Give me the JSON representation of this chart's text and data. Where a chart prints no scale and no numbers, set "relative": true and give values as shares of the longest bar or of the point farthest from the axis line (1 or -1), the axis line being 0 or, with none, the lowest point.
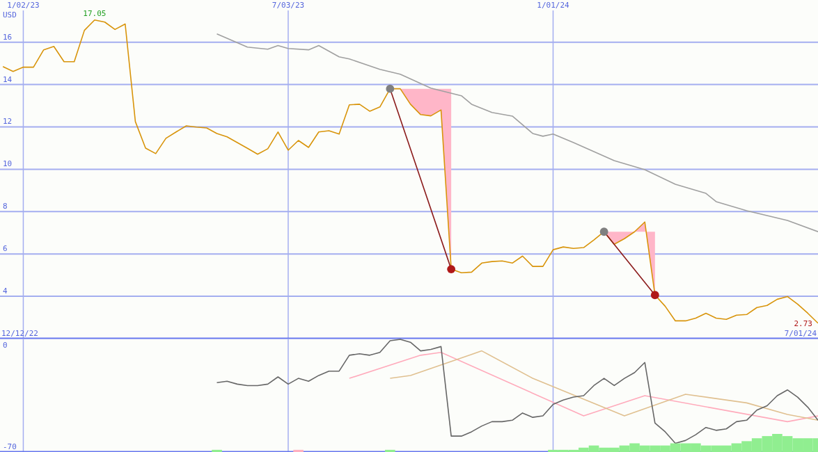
{
  "chart_data": [
    {
      "type": "line",
      "ylabel": "USD",
      "x": [
        "2022-12-19",
        "2022-12-26",
        "2023-01-02",
        "2023-01-09",
        "2023-01-16",
        "2023-01-23",
        "2023-01-30",
        "2023-02-06",
        "2023-02-13",
        "2023-02-20",
        "2023-02-27",
        "2023-03-06",
        "2023-03-13",
        "2023-03-20",
        "2023-03-27",
        "2023-04-03",
        "2023-04-10",
        "2023-04-17",
        "2023-04-24",
        "2023-05-01",
        "2023-05-08",
        "2023-05-15",
        "2023-05-22",
        "2023-05-29",
        "2023-06-05",
        "2023-06-12",
        "2023-06-19",
        "2023-06-26",
        "2023-07-03",
        "2023-07-10",
        "2023-07-17",
        "2023-07-24",
        "2023-07-31",
        "2023-08-07",
        "2023-08-14",
        "2023-08-21",
        "2023-08-28",
        "2023-09-04",
        "2023-09-11",
        "2023-09-18",
        "2023-09-25",
        "2023-10-02",
        "2023-10-09",
        "2023-10-16",
        "2023-10-23",
        "2023-10-30",
        "2023-11-06",
        "2023-11-13",
        "2023-11-20",
        "2023-11-27",
        "2023-12-04",
        "2023-12-11",
        "2023-12-18",
        "2023-12-25",
        "2024-01-01",
        "2024-01-08",
        "2024-01-15",
        "2024-01-22",
        "2024-01-29",
        "2024-02-05",
        "2024-02-12",
        "2024-02-19",
        "2024-02-26",
        "2024-03-04",
        "2024-03-11",
        "2024-03-18",
        "2024-03-25",
        "2024-04-01",
        "2024-04-08",
        "2024-04-15",
        "2024-04-22",
        "2024-04-29",
        "2024-05-06",
        "2024-05-13",
        "2024-05-20",
        "2024-05-27",
        "2024-06-03",
        "2024-06-10",
        "2024-06-17",
        "2024-06-24",
        "2024-07-01"
      ],
      "series": [
        {
          "color": "#d8940a",
          "values": [
            14.85,
            14.62,
            14.82,
            14.82,
            15.64,
            15.8,
            15.08,
            15.08,
            16.56,
            17.05,
            16.95,
            16.6,
            16.86,
            12.25,
            11.0,
            10.74,
            11.46,
            11.76,
            12.05,
            11.99,
            11.95,
            11.69,
            11.53,
            11.26,
            10.99,
            10.71,
            10.97,
            11.76,
            10.9,
            11.36,
            11.03,
            11.76,
            11.82,
            11.66,
            13.04,
            13.07,
            12.74,
            12.94,
            13.8,
            13.8,
            13.07,
            12.58,
            12.52,
            12.8,
            5.28,
            5.11,
            5.14,
            5.57,
            5.64,
            5.67,
            5.57,
            5.9,
            5.41,
            5.41,
            6.2,
            6.33,
            6.26,
            6.3,
            6.66,
            7.05,
            6.46,
            6.72,
            7.05,
            7.51,
            4.06,
            3.53,
            2.84,
            2.84,
            2.97,
            3.2,
            2.97,
            2.91,
            3.11,
            3.14,
            3.47,
            3.57,
            3.86,
            3.99,
            3.63,
            3.2,
            2.73
          ],
          "lower": [
            null,
            null,
            null,
            null,
            null,
            null,
            null,
            null,
            null,
            null,
            null,
            null,
            null,
            null,
            null,
            null,
            null,
            null,
            null,
            null,
            null,
            null,
            null,
            null,
            null,
            null,
            null,
            null,
            null,
            null,
            null,
            null,
            null,
            null,
            null,
            null,
            null,
            null,
            13.8,
            13.8,
            13.07,
            12.58,
            12.52,
            12.8,
            5.28,
            null,
            null,
            null,
            null,
            null,
            null,
            null,
            null,
            null,
            null,
            null,
            null,
            null,
            null,
            7.05,
            6.46,
            6.72,
            7.05,
            7.51,
            4.06,
            null,
            null,
            null,
            null,
            null,
            null,
            null,
            null,
            null,
            null,
            null,
            null,
            null,
            null,
            null,
            null
          ],
          "upper": [
            null,
            null,
            null,
            null,
            null,
            null,
            null,
            null,
            null,
            null,
            null,
            null,
            null,
            null,
            null,
            null,
            null,
            null,
            null,
            null,
            null,
            null,
            null,
            null,
            null,
            null,
            null,
            null,
            null,
            null,
            null,
            null,
            null,
            null,
            null,
            null,
            null,
            null,
            13.8,
            13.8,
            13.8,
            13.8,
            13.8,
            13.8,
            13.8,
            null,
            null,
            null,
            null,
            null,
            null,
            null,
            null,
            null,
            null,
            null,
            null,
            null,
            null,
            7.05,
            7.05,
            7.05,
            7.05,
            7.05,
            7.05,
            null,
            null,
            null,
            null,
            null,
            null,
            null,
            null,
            null,
            null,
            null,
            null,
            null,
            null,
            null,
            null
          ]
        },
        {
          "color": "#a0a0a0",
          "x": [
            "2023-05-15",
            "2023-06-05",
            "2023-06-19",
            "2023-06-26",
            "2023-07-03",
            "2023-07-17",
            "2023-07-24",
            "2023-08-07",
            "2023-08-14",
            "2023-09-04",
            "2023-09-18",
            "2023-10-09",
            "2023-10-30",
            "2023-11-06",
            "2023-11-20",
            "2023-12-04",
            "2023-12-18",
            "2023-12-25",
            "2024-01-01",
            "2024-01-15",
            "2024-02-12",
            "2024-03-04",
            "2024-03-25",
            "2024-04-15",
            "2024-04-22",
            "2024-05-13",
            "2024-06-10",
            "2024-07-01"
          ],
          "values": [
            16.39,
            15.77,
            15.67,
            15.84,
            15.7,
            15.64,
            15.84,
            15.31,
            15.21,
            14.72,
            14.49,
            13.83,
            13.47,
            13.07,
            12.68,
            12.51,
            11.69,
            11.56,
            11.66,
            11.26,
            10.41,
            9.98,
            9.29,
            8.86,
            8.47,
            8.04,
            7.58,
            7.05
          ]
        },
        {
          "color": "#8b1a1a",
          "marker": "circle",
          "colors": [
            "#808080",
            "#b01818"
          ],
          "x": [
            "2023-09-11",
            "2023-10-23"
          ],
          "values": [
            13.8,
            5.28
          ]
        },
        {
          "color": "#8b1a1a",
          "marker": "circle",
          "colors": [
            "#808080",
            "#b01818"
          ],
          "x": [
            "2024-02-05",
            "2024-03-11"
          ],
          "values": [
            7.05,
            4.06
          ]
        }
      ],
      "xlim": [
        "2022-12-17",
        "2024-07-01"
      ],
      "xticks": [
        {
          "value": "2023-01-02",
          "label": "1/02/23"
        },
        {
          "value": "2023-07-03",
          "label": "7/03/23"
        },
        {
          "value": "2024-01-01",
          "label": "1/01/24"
        }
      ],
      "ylim": [
        2,
        17.5
      ],
      "yticks": [
        4,
        6,
        8,
        10,
        12,
        14,
        16
      ],
      "grid": true,
      "annotations": [
        {
          "text": "17.05",
          "x": "2023-02-20",
          "y": 17.05
        },
        {
          "text": "2.73",
          "x": "2024-07-01",
          "y": 2.73
        },
        "12/12/22",
        "7/01/24"
      ]
    },
    {
      "type": "line",
      "x": [
        "2023-05-15",
        "2023-05-22",
        "2023-05-29",
        "2023-06-05",
        "2023-06-12",
        "2023-06-19",
        "2023-06-26",
        "2023-07-03",
        "2023-07-10",
        "2023-07-17",
        "2023-07-24",
        "2023-07-31",
        "2023-08-07",
        "2023-08-14",
        "2023-08-21",
        "2023-08-28",
        "2023-09-04",
        "2023-09-11",
        "2023-09-18",
        "2023-09-25",
        "2023-10-02",
        "2023-10-09",
        "2023-10-16",
        "2023-10-23",
        "2023-10-30",
        "2023-11-06",
        "2023-11-13",
        "2023-11-20",
        "2023-11-27",
        "2023-12-04",
        "2023-12-11",
        "2023-12-18",
        "2023-12-25",
        "2024-01-01",
        "2024-01-08",
        "2024-01-15",
        "2024-01-22",
        "2024-01-29",
        "2024-02-05",
        "2024-02-12",
        "2024-02-19",
        "2024-02-26",
        "2024-03-04",
        "2024-03-11",
        "2024-03-18",
        "2024-03-25",
        "2024-04-01",
        "2024-04-08",
        "2024-04-15",
        "2024-04-22",
        "2024-04-29",
        "2024-05-06",
        "2024-05-13",
        "2024-05-20",
        "2024-05-27",
        "2024-06-03",
        "2024-06-10",
        "2024-06-17",
        "2024-06-24",
        "2024-07-01"
      ],
      "series": [
        {
          "color": "#ffaabb",
          "x": [
            "2023-08-14",
            "2023-10-02",
            "2023-10-16",
            "2024-01-22",
            "2024-03-04",
            "2024-06-10",
            "2024-07-01"
          ],
          "values": [
            -23,
            -7,
            -5,
            -49,
            -35,
            -53,
            -49
          ]
        },
        {
          "color": "#e0c090",
          "x": [
            "2023-09-11",
            "2023-09-25",
            "2023-11-13",
            "2023-12-18",
            "2024-02-19",
            "2024-04-01",
            "2024-05-13",
            "2024-06-10",
            "2024-07-01"
          ],
          "values": [
            -23,
            -21,
            -4,
            -23,
            -49,
            -34,
            -40,
            -48,
            -52
          ]
        },
        {
          "color": "#666666",
          "values": [
            -26,
            -25,
            -27,
            -28,
            -28,
            -27,
            -22,
            -27,
            -23,
            -25,
            -21,
            -18,
            -18,
            -7,
            -6,
            -7,
            -5,
            3,
            4,
            2,
            -4,
            -3,
            -1,
            -63,
            -63,
            -60,
            -56,
            -53,
            -53,
            -52,
            -47,
            -50,
            -49,
            -41,
            -38,
            -36,
            -35,
            -28,
            -23,
            -28,
            -23,
            -19,
            -12,
            -54,
            -60,
            -68,
            -66,
            -62,
            -57,
            -59,
            -58,
            -53,
            -52,
            -45,
            -42,
            -35,
            -31,
            -36,
            -43,
            -52
          ]
        }
      ],
      "xlim": [
        "2022-12-17",
        "2024-07-01"
      ],
      "xticks": [
        "2023-01-02",
        "2023-07-03",
        "2024-01-01"
      ],
      "ylim": [
        -74,
        4
      ],
      "yticks": [
        -70,
        0
      ],
      "grid": "x",
      "tick_labels": "y"
    },
    {
      "type": "bar",
      "relative": true,
      "x": [
        "2023-05-15",
        "2023-07-10",
        "2023-09-11",
        "2024-01-01",
        "2024-01-08",
        "2024-01-15",
        "2024-01-22",
        "2024-01-29",
        "2024-02-05",
        "2024-02-12",
        "2024-02-19",
        "2024-02-26",
        "2024-03-04",
        "2024-03-11",
        "2024-03-18",
        "2024-03-25",
        "2024-04-01",
        "2024-04-08",
        "2024-04-15",
        "2024-04-22",
        "2024-04-29",
        "2024-05-06",
        "2024-05-13",
        "2024-05-20",
        "2024-05-27",
        "2024-06-03",
        "2024-06-10",
        "2024-06-17",
        "2024-06-24",
        "2024-07-01"
      ],
      "values": [
        0.12,
        0.12,
        0.12,
        0.12,
        0.12,
        0.12,
        0.24,
        0.36,
        0.24,
        0.24,
        0.36,
        0.48,
        0.36,
        0.36,
        0.36,
        0.48,
        0.48,
        0.48,
        0.36,
        0.36,
        0.36,
        0.48,
        0.6,
        0.76,
        0.88,
        1,
        0.88,
        0.76,
        0.76,
        0.76
      ],
      "colors": [
        "#90ee90",
        "#ffb0c0",
        "#90ee90",
        "#90ee90",
        "#90ee90",
        "#90ee90",
        "#90ee90",
        "#90ee90",
        "#90ee90",
        "#90ee90",
        "#90ee90",
        "#90ee90",
        "#90ee90",
        "#90ee90",
        "#90ee90",
        "#90ee90",
        "#90ee90",
        "#90ee90",
        "#90ee90",
        "#90ee90",
        "#90ee90",
        "#90ee90",
        "#90ee90",
        "#90ee90",
        "#90ee90",
        "#90ee90",
        "#90ee90",
        "#90ee90",
        "#90ee90",
        "#90ee90"
      ],
      "xlim": [
        "2022-12-17",
        "2024-07-01"
      ],
      "tick_labels": false
    }
  ]
}
